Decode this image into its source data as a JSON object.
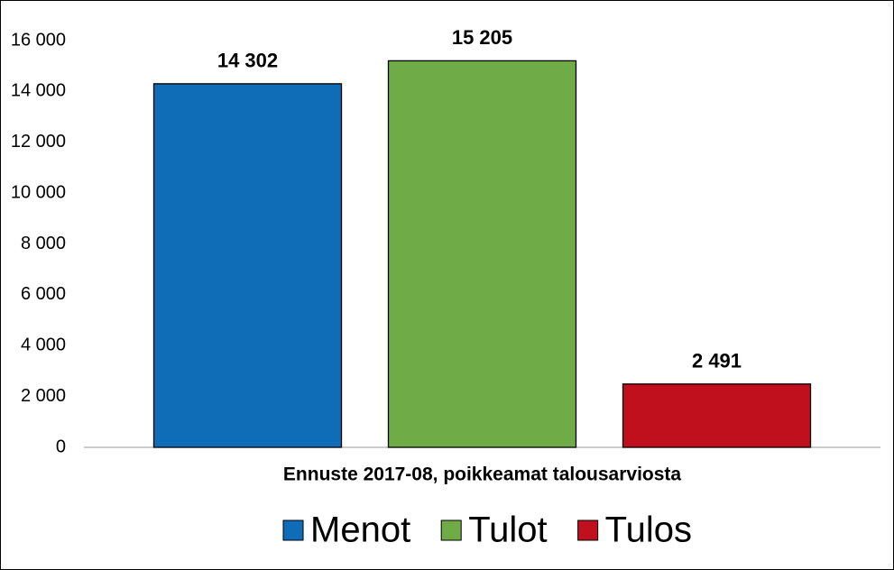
{
  "chart_data": {
    "type": "bar",
    "categories": [
      "Ennuste 2017-08, poikkeamat talousarviosta"
    ],
    "series": [
      {
        "name": "Menot",
        "color": "#0f6db7",
        "values": [
          14302
        ],
        "value_labels": [
          "14 302"
        ]
      },
      {
        "name": "Tulot",
        "color": "#6fab46",
        "values": [
          15205
        ],
        "value_labels": [
          "15 205"
        ]
      },
      {
        "name": "Tulos",
        "color": "#c0101d",
        "values": [
          2491
        ],
        "value_labels": [
          "2 491"
        ]
      }
    ],
    "ylim": [
      0,
      16000
    ],
    "yticks": [
      {
        "value": 0,
        "label": "0"
      },
      {
        "value": 2000,
        "label": "2 000"
      },
      {
        "value": 4000,
        "label": "4 000"
      },
      {
        "value": 6000,
        "label": "6 000"
      },
      {
        "value": 8000,
        "label": "8 000"
      },
      {
        "value": 10000,
        "label": "10 000"
      },
      {
        "value": 12000,
        "label": "12 000"
      },
      {
        "value": 14000,
        "label": "14 000"
      },
      {
        "value": 16000,
        "label": "16 000"
      }
    ],
    "grid": false,
    "legend": "bottom"
  }
}
